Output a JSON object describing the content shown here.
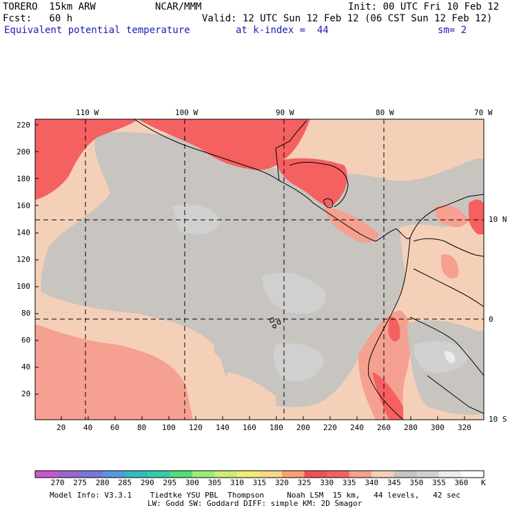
{
  "header": {
    "model": "TORERO  15km ARW",
    "org": "NCAR/MMM",
    "init": "Init: 00 UTC Fri 10 Feb 12",
    "fcst": "Fcst:   60 h",
    "valid": "Valid: 12 UTC Sun 12 Feb 12 (06 CST Sun 12 Feb 12)",
    "field": "Equivalent potential temperature",
    "level": "at k-index =  44",
    "smooth": "sm= 2"
  },
  "map": {
    "lon_labels": [
      "110 W",
      "100 W",
      "90 W",
      "80 W",
      "70 W"
    ],
    "lat_labels": [
      "10 N",
      "0",
      "10 S"
    ],
    "y_ticks": [
      "220",
      "200",
      "180",
      "160",
      "140",
      "120",
      "100",
      "80",
      "60",
      "40",
      "20"
    ],
    "x_ticks": [
      "20",
      "40",
      "60",
      "80",
      "100",
      "120",
      "140",
      "160",
      "180",
      "200",
      "220",
      "240",
      "260",
      "280",
      "300",
      "320"
    ]
  },
  "colorbar": {
    "labels": [
      "270",
      "275",
      "280",
      "285",
      "290",
      "295",
      "300",
      "305",
      "310",
      "315",
      "320",
      "325",
      "330",
      "335",
      "340",
      "345",
      "350",
      "355",
      "360"
    ],
    "unit": "K",
    "colors": [
      "#cc55cc",
      "#9966cc",
      "#7777dd",
      "#5599dd",
      "#33bbbb",
      "#33ccaa",
      "#55dd77",
      "#99ee77",
      "#ccee77",
      "#eeee77",
      "#f6d88c",
      "#f7a070",
      "#f05050",
      "#f56060",
      "#f5a090",
      "#f5d0b8",
      "#c8c4c0",
      "#d0d0d0",
      "#ececec",
      "#ffffff"
    ]
  },
  "footer": {
    "line1": "Model Info: V3.3.1    Tiedtke YSU PBL  Thompson     Noah LSM  15 km,   44 levels,   42 sec",
    "line2": "LW: Godd SW: Goddard DIFF: simple KM: 2D Smagor"
  }
}
